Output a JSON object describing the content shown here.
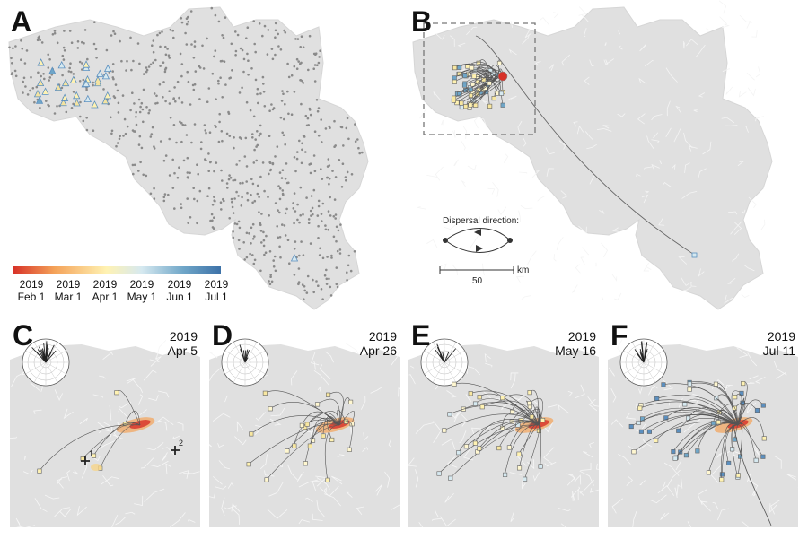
{
  "panels": [
    {
      "letter": "A"
    },
    {
      "letter": "B"
    },
    {
      "letter": "C",
      "year": "2019",
      "date": "Apr 5"
    },
    {
      "letter": "D",
      "year": "2019",
      "date": "Apr 26"
    },
    {
      "letter": "E",
      "year": "2019",
      "date": "May 16"
    },
    {
      "letter": "F",
      "year": "2019",
      "date": "Jul 11"
    }
  ],
  "colorbar": {
    "stops": [
      "#d73027",
      "#f4a259",
      "#fff2b2",
      "#d6e9f0",
      "#6fa6c8",
      "#3d72a8"
    ],
    "ticks": [
      {
        "year": "2019",
        "label": "Feb 1"
      },
      {
        "year": "2019",
        "label": "Mar 1"
      },
      {
        "year": "2019",
        "label": "Apr 1"
      },
      {
        "year": "2019",
        "label": "May 1"
      },
      {
        "year": "2019",
        "label": "Jun 1"
      },
      {
        "year": "2019",
        "label": "Jul 1"
      }
    ]
  },
  "legend": {
    "dispersal_title": "Dispersal direction:",
    "scale_value": "50",
    "scale_unit": "km"
  },
  "markers": [
    {
      "label": "1"
    },
    {
      "label": "2"
    }
  ],
  "colors": {
    "land": "#e0e0e0",
    "border": "#ffffff",
    "points": "#8a8a8a",
    "early": "#d73027",
    "mid": "#fff2b2",
    "late": "#5b8fbf"
  }
}
